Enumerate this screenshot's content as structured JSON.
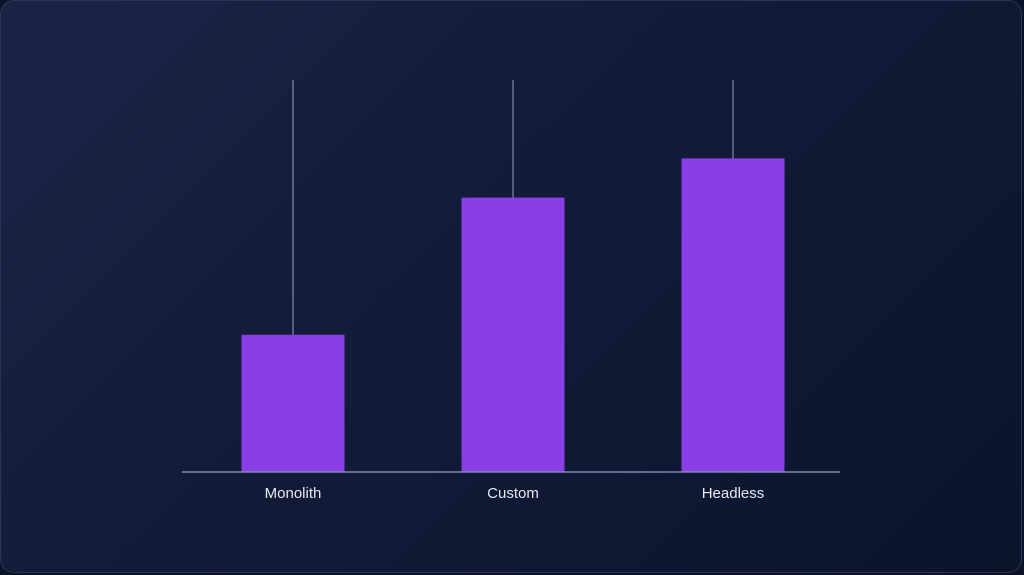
{
  "chart_data": {
    "type": "bar",
    "categories": [
      "Monolith",
      "Custom",
      "Headless"
    ],
    "values": [
      35,
      70,
      80
    ],
    "ylim": [
      0,
      100
    ],
    "grid": false,
    "title": "",
    "xlabel": "",
    "ylabel": "",
    "bar_color": "#8a3fe6",
    "guide_color": "#7d8aae",
    "axis_color": "#7d8aae"
  }
}
